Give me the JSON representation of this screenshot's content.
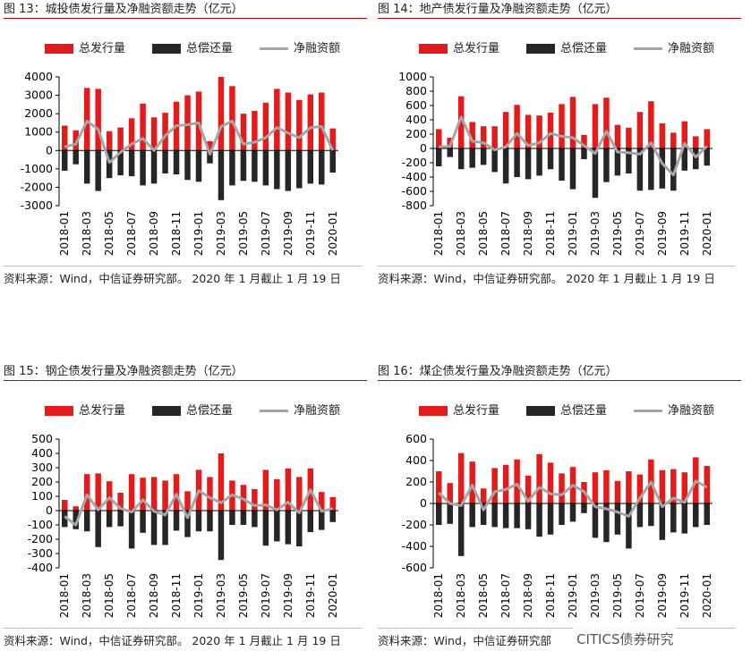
{
  "dates": [
    "2018-01",
    "2018-03",
    "2018-05",
    "2018-07",
    "2018-09",
    "2018-11",
    "2019-01",
    "2019-03",
    "2019-05",
    "2019-07",
    "2019-09",
    "2019-11",
    "2020-01"
  ],
  "legend": {
    "issuance": "总发行量",
    "repayment": "总偿还量",
    "net": "净融资额"
  },
  "colors": {
    "issuance": "#e31b1b",
    "repayment": "#262626",
    "net": "#a6a6a6"
  },
  "watermark": "CITICS债券研究",
  "panels": [
    {
      "title": "图 13：城投债发行量及净融资额走势（亿元）",
      "source": "资料来源：Wind，中信证券研究部。 2020 年 1 月截止 1 月 19 日",
      "chart_data": {
        "type": "bar",
        "title": "城投债发行量及净融资额走势（亿元）",
        "categories": [
          "2018-01",
          "2018-02",
          "2018-03",
          "2018-04",
          "2018-05",
          "2018-06",
          "2018-07",
          "2018-08",
          "2018-09",
          "2018-10",
          "2018-11",
          "2018-12",
          "2019-01",
          "2019-02",
          "2019-03",
          "2019-04",
          "2019-05",
          "2019-06",
          "2019-07",
          "2019-08",
          "2019-09",
          "2019-10",
          "2019-11",
          "2019-12",
          "2020-01"
        ],
        "ylim": [
          -3000,
          4000
        ],
        "yticks": [
          -3000,
          -2000,
          -1000,
          0,
          1000,
          2000,
          3000,
          4000
        ],
        "series": [
          {
            "name": "总发行量",
            "type": "bar",
            "values": [
              1350,
              1100,
              3400,
              3350,
              1050,
              1250,
              1750,
              2550,
              1800,
              2050,
              2650,
              3000,
              3200,
              500,
              4000,
              3500,
              2000,
              2150,
              2600,
              3350,
              3150,
              2750,
              3050,
              3150,
              1200
            ]
          },
          {
            "name": "总偿还量",
            "type": "bar",
            "values": [
              -1100,
              -750,
              -1800,
              -2200,
              -1500,
              -1350,
              -1400,
              -1900,
              -1800,
              -1250,
              -1300,
              -1600,
              -1700,
              -700,
              -2700,
              -1900,
              -1650,
              -1700,
              -1900,
              -2100,
              -2200,
              -2050,
              -1800,
              -1850,
              -1200
            ]
          },
          {
            "name": "净融资额",
            "type": "line",
            "values": [
              200,
              350,
              1600,
              1150,
              -650,
              -100,
              350,
              650,
              0,
              800,
              1350,
              1400,
              1500,
              -200,
              1300,
              1600,
              350,
              450,
              700,
              1250,
              950,
              700,
              1250,
              1300,
              0
            ]
          }
        ]
      }
    },
    {
      "title": "图 14：地产债发行量及净融资额走势（亿元）",
      "source": "资料来源：Wind，中信证券研究部。 2020 年 1 月截止 1 月 19 日",
      "chart_data": {
        "type": "bar",
        "title": "地产债发行量及净融资额走势（亿元）",
        "categories": [
          "2018-01",
          "2018-02",
          "2018-03",
          "2018-04",
          "2018-05",
          "2018-06",
          "2018-07",
          "2018-08",
          "2018-09",
          "2018-10",
          "2018-11",
          "2018-12",
          "2019-01",
          "2019-02",
          "2019-03",
          "2019-04",
          "2019-05",
          "2019-06",
          "2019-07",
          "2019-08",
          "2019-09",
          "2019-10",
          "2019-11",
          "2019-12",
          "2020-01"
        ],
        "ylim": [
          -800,
          1000
        ],
        "yticks": [
          -800,
          -600,
          -400,
          -200,
          0,
          200,
          400,
          600,
          800,
          1000
        ],
        "series": [
          {
            "name": "总发行量",
            "type": "bar",
            "values": [
              270,
              150,
              730,
              370,
              310,
              310,
              510,
              610,
              470,
              460,
              500,
              620,
              720,
              190,
              620,
              710,
              330,
              290,
              510,
              660,
              350,
              220,
              380,
              170,
              270
            ]
          },
          {
            "name": "总偿还量",
            "type": "bar",
            "values": [
              -250,
              -120,
              -290,
              -270,
              -230,
              -330,
              -490,
              -400,
              -430,
              -380,
              -290,
              -450,
              -570,
              -150,
              -690,
              -470,
              -380,
              -350,
              -590,
              -580,
              -560,
              -590,
              -310,
              -290,
              -240
            ]
          },
          {
            "name": "净融资额",
            "type": "line",
            "values": [
              20,
              30,
              440,
              100,
              80,
              -20,
              20,
              210,
              40,
              80,
              210,
              170,
              150,
              40,
              -70,
              240,
              -50,
              -60,
              -80,
              80,
              -210,
              -370,
              70,
              -120,
              30
            ]
          }
        ]
      }
    },
    {
      "title": "图 15：钢企债发行量及净融资额走势（亿元）",
      "source": "资料来源：Wind，中信证券研究部。 2020 年 1 月截止 1 月 19 日",
      "chart_data": {
        "type": "bar",
        "title": "钢企债发行量及净融资额走势（亿元）",
        "categories": [
          "2018-01",
          "2018-02",
          "2018-03",
          "2018-04",
          "2018-05",
          "2018-06",
          "2018-07",
          "2018-08",
          "2018-09",
          "2018-10",
          "2018-11",
          "2018-12",
          "2019-01",
          "2019-02",
          "2019-03",
          "2019-04",
          "2019-05",
          "2019-06",
          "2019-07",
          "2019-08",
          "2019-09",
          "2019-10",
          "2019-11",
          "2019-12",
          "2020-01"
        ],
        "ylim": [
          -400,
          500
        ],
        "yticks": [
          -400,
          -300,
          -200,
          -100,
          0,
          100,
          200,
          300,
          400,
          500
        ],
        "series": [
          {
            "name": "总发行量",
            "type": "bar",
            "values": [
              75,
              30,
              255,
              260,
              205,
              125,
              255,
              230,
              235,
              210,
              255,
              135,
              285,
              235,
              400,
              210,
              180,
              150,
              285,
              220,
              295,
              235,
              295,
              130,
              95
            ]
          },
          {
            "name": "总偿还量",
            "type": "bar",
            "values": [
              -115,
              -130,
              -145,
              -255,
              -115,
              -110,
              -265,
              -155,
              -240,
              -240,
              -140,
              -185,
              -145,
              -145,
              -345,
              -100,
              -100,
              -115,
              -245,
              -215,
              -235,
              -250,
              -150,
              -135,
              -80
            ]
          },
          {
            "name": "净融资额",
            "type": "line",
            "values": [
              -40,
              -100,
              110,
              5,
              90,
              15,
              -10,
              75,
              -5,
              -30,
              115,
              -50,
              140,
              90,
              55,
              110,
              80,
              35,
              40,
              5,
              60,
              -15,
              145,
              -5,
              15
            ]
          }
        ]
      }
    },
    {
      "title": "图 16：煤企债发行量及净融资额走势（亿元）",
      "source": "资料来源：Wind，中信证券研究部",
      "chart_data": {
        "type": "bar",
        "title": "煤企债发行量及净融资额走势（亿元）",
        "categories": [
          "2018-01",
          "2018-02",
          "2018-03",
          "2018-04",
          "2018-05",
          "2018-06",
          "2018-07",
          "2018-08",
          "2018-09",
          "2018-10",
          "2018-11",
          "2018-12",
          "2019-01",
          "2019-02",
          "2019-03",
          "2019-04",
          "2019-05",
          "2019-06",
          "2019-07",
          "2019-08",
          "2019-09",
          "2019-10",
          "2019-11",
          "2019-12",
          "2020-01"
        ],
        "ylim": [
          -600,
          600
        ],
        "yticks": [
          -600,
          -400,
          -200,
          0,
          200,
          400,
          600
        ],
        "series": [
          {
            "name": "总发行量",
            "type": "bar",
            "values": [
              300,
              190,
              470,
              390,
              140,
              330,
              360,
              410,
              260,
              460,
              380,
              280,
              340,
              200,
              290,
              310,
              210,
              300,
              270,
              410,
              310,
              320,
              290,
              430,
              350
            ]
          },
          {
            "name": "总偿还量",
            "type": "bar",
            "values": [
              -200,
              -190,
              -490,
              -220,
              -200,
              -220,
              -230,
              -230,
              -240,
              -310,
              -290,
              -200,
              -170,
              -90,
              -320,
              -360,
              -290,
              -420,
              -220,
              -210,
              -340,
              -270,
              -280,
              -220,
              -200
            ]
          },
          {
            "name": "净融资额",
            "type": "line",
            "values": [
              100,
              0,
              -20,
              170,
              -60,
              110,
              130,
              180,
              20,
              150,
              90,
              80,
              170,
              110,
              -30,
              -50,
              -80,
              -120,
              50,
              200,
              -30,
              50,
              10,
              210,
              150
            ]
          }
        ]
      }
    }
  ]
}
